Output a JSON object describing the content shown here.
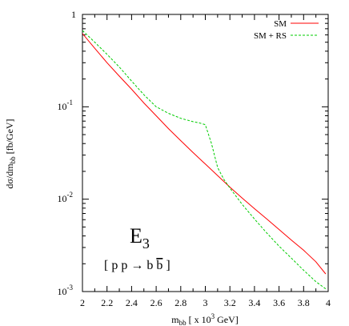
{
  "chart_data": {
    "type": "line",
    "xlabel": {
      "main": "m",
      "sub": "bb",
      "tail": " [ x 10",
      "sup": "3",
      "unit": " GeV]"
    },
    "ylabel": {
      "main": "dσ/dm",
      "sub": "bb",
      "unit": " [fb/GeV]"
    },
    "xlim": [
      2.0,
      4.0
    ],
    "ylim": [
      0.001,
      1
    ],
    "y_scale": "log",
    "x_ticks": [
      "2",
      "2.2",
      "2.4",
      "2.6",
      "2.8",
      "3",
      "3.2",
      "3.4",
      "3.6",
      "3.8",
      "4"
    ],
    "y_tick_labels": {
      "t1": {
        "base": "1",
        "exp": ""
      },
      "t01": {
        "base": "10",
        "exp": "-1"
      },
      "t001": {
        "base": "10",
        "exp": "-2"
      },
      "t0001": {
        "base": "10",
        "exp": "-3"
      }
    },
    "legend_position": "top-right",
    "series": [
      {
        "name": "SM",
        "color": "#ff0000",
        "style": "solid",
        "x": [
          2.0,
          2.1,
          2.2,
          2.3,
          2.4,
          2.5,
          2.6,
          2.7,
          2.8,
          2.9,
          3.0,
          3.1,
          3.2,
          3.3,
          3.4,
          3.5,
          3.6,
          3.7,
          3.8,
          3.9,
          3.98
        ],
        "y": [
          0.62,
          0.43,
          0.3,
          0.215,
          0.155,
          0.11,
          0.08,
          0.058,
          0.043,
          0.032,
          0.024,
          0.018,
          0.0135,
          0.0103,
          0.0079,
          0.0061,
          0.0047,
          0.0036,
          0.0028,
          0.0021,
          0.00155
        ]
      },
      {
        "name": "SM + RS",
        "color": "#00cc00",
        "style": "dashed",
        "x": [
          2.0,
          2.1,
          2.2,
          2.3,
          2.4,
          2.5,
          2.6,
          2.7,
          2.8,
          2.9,
          2.95,
          3.0,
          3.05,
          3.1,
          3.15,
          3.2,
          3.3,
          3.4,
          3.5,
          3.6,
          3.7,
          3.8,
          3.9,
          3.98
        ],
        "y": [
          0.67,
          0.5,
          0.37,
          0.27,
          0.19,
          0.135,
          0.1,
          0.085,
          0.075,
          0.069,
          0.067,
          0.064,
          0.04,
          0.022,
          0.0165,
          0.0132,
          0.0088,
          0.0061,
          0.0043,
          0.0031,
          0.0023,
          0.0017,
          0.00128,
          0.00107
        ]
      }
    ],
    "annotations": {
      "label_main": "E",
      "label_sub": "3",
      "process": "[ p p → b ",
      "process_bbar": "b",
      "process_close": " ]"
    }
  }
}
